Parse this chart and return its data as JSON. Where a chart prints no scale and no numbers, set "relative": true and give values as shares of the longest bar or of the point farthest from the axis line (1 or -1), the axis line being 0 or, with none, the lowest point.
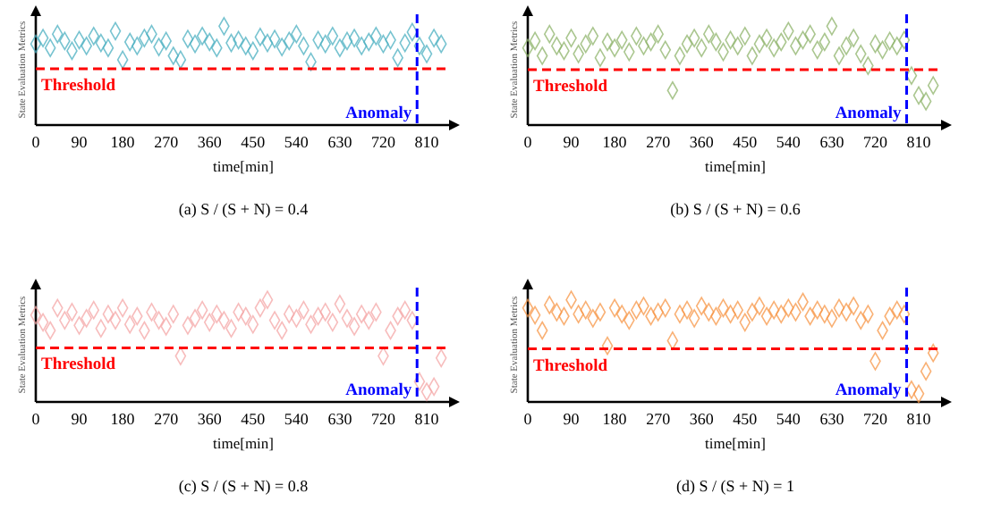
{
  "chart_data": [
    {
      "type": "scatter",
      "title": "(a) S / (S + N) = 0.4",
      "xlabel": "time[min]",
      "ylabel": "State Evaluation Metrics",
      "relative": true,
      "marker": "diamond",
      "xlim": [
        0,
        860
      ],
      "xticks": [
        0,
        90,
        180,
        270,
        360,
        450,
        540,
        630,
        720,
        810
      ],
      "x": [
        0,
        15,
        30,
        45,
        60,
        75,
        90,
        105,
        120,
        135,
        150,
        165,
        180,
        195,
        210,
        225,
        240,
        255,
        270,
        285,
        300,
        315,
        330,
        345,
        360,
        375,
        390,
        405,
        420,
        435,
        450,
        465,
        480,
        495,
        510,
        525,
        540,
        555,
        570,
        585,
        600,
        615,
        630,
        645,
        660,
        675,
        690,
        705,
        720,
        735,
        750,
        765,
        780,
        795,
        810,
        825,
        840
      ],
      "series": [
        {
          "color": "#4aafc0",
          "values": [
            0.82,
            0.88,
            0.78,
            0.92,
            0.85,
            0.75,
            0.86,
            0.8,
            0.9,
            0.83,
            0.78,
            0.95,
            0.66,
            0.84,
            0.8,
            0.88,
            0.92,
            0.79,
            0.85,
            0.7,
            0.66,
            0.87,
            0.82,
            0.9,
            0.84,
            0.78,
            1.0,
            0.83,
            0.86,
            0.8,
            0.75,
            0.89,
            0.83,
            0.87,
            0.79,
            0.85,
            0.92,
            0.8,
            0.64,
            0.86,
            0.82,
            0.9,
            0.78,
            0.85,
            0.88,
            0.8,
            0.84,
            0.9,
            0.82,
            0.86,
            0.68,
            0.83,
            0.94,
            0.8,
            0.72,
            0.88,
            0.82
          ]
        }
      ],
      "ref_lines": [
        {
          "axis": "y",
          "value": 0.57,
          "label": "Threshold",
          "color": "#ff0000",
          "line_style": "dashed"
        },
        {
          "axis": "x",
          "value": 790,
          "label": "Anomaly",
          "color": "#0000ff",
          "line_style": "dashed"
        }
      ]
    },
    {
      "type": "scatter",
      "title": "(b) S / (S + N) = 0.6",
      "xlabel": "time[min]",
      "ylabel": "State Evaluation Metrics",
      "relative": true,
      "marker": "diamond",
      "xlim": [
        0,
        860
      ],
      "xticks": [
        0,
        90,
        180,
        270,
        360,
        450,
        540,
        630,
        720,
        810
      ],
      "x": [
        0,
        15,
        30,
        45,
        60,
        75,
        90,
        105,
        120,
        135,
        150,
        165,
        180,
        195,
        210,
        225,
        240,
        255,
        270,
        285,
        300,
        315,
        330,
        345,
        360,
        375,
        390,
        405,
        420,
        435,
        450,
        465,
        480,
        495,
        510,
        525,
        540,
        555,
        570,
        585,
        600,
        615,
        630,
        645,
        660,
        675,
        690,
        705,
        720,
        735,
        750,
        765,
        780,
        795,
        810,
        825,
        840
      ],
      "series": [
        {
          "color": "#8db36a",
          "values": [
            0.78,
            0.85,
            0.7,
            0.92,
            0.8,
            0.75,
            0.88,
            0.72,
            0.82,
            0.9,
            0.68,
            0.84,
            0.78,
            0.86,
            0.74,
            0.9,
            0.8,
            0.84,
            0.92,
            0.76,
            0.35,
            0.7,
            0.82,
            0.88,
            0.78,
            0.92,
            0.84,
            0.74,
            0.86,
            0.8,
            0.9,
            0.7,
            0.82,
            0.88,
            0.78,
            0.84,
            0.95,
            0.8,
            0.86,
            0.92,
            0.76,
            0.84,
            1.0,
            0.7,
            0.8,
            0.88,
            0.72,
            0.6,
            0.82,
            0.76,
            0.85,
            0.8,
            0.86,
            0.5,
            0.3,
            0.24,
            0.4
          ]
        }
      ],
      "ref_lines": [
        {
          "axis": "y",
          "value": 0.56,
          "label": "Threshold",
          "color": "#ff0000",
          "line_style": "dashed"
        },
        {
          "axis": "x",
          "value": 785,
          "label": "Anomaly",
          "color": "#0000ff",
          "line_style": "dashed"
        }
      ]
    },
    {
      "type": "scatter",
      "title": "(c) S / (S + N) = 0.8",
      "xlabel": "time[min]",
      "ylabel": "State Evaluation Metrics",
      "relative": true,
      "marker": "diamond",
      "xlim": [
        0,
        860
      ],
      "xticks": [
        0,
        90,
        180,
        270,
        360,
        450,
        540,
        630,
        720,
        810
      ],
      "x": [
        0,
        15,
        30,
        45,
        60,
        75,
        90,
        105,
        120,
        135,
        150,
        165,
        180,
        195,
        210,
        225,
        240,
        255,
        270,
        285,
        300,
        315,
        330,
        345,
        360,
        375,
        390,
        405,
        420,
        435,
        450,
        465,
        480,
        495,
        510,
        525,
        540,
        555,
        570,
        585,
        600,
        615,
        630,
        645,
        660,
        675,
        690,
        705,
        720,
        735,
        750,
        765,
        780,
        795,
        810,
        825,
        840
      ],
      "series": [
        {
          "color": "#f4a6a6",
          "values": [
            0.85,
            0.78,
            0.7,
            0.92,
            0.8,
            0.88,
            0.75,
            0.82,
            0.9,
            0.72,
            0.86,
            0.8,
            0.92,
            0.76,
            0.84,
            0.7,
            0.88,
            0.8,
            0.74,
            0.86,
            0.45,
            0.75,
            0.82,
            0.9,
            0.78,
            0.86,
            0.8,
            0.72,
            0.88,
            0.84,
            0.76,
            0.92,
            1.0,
            0.8,
            0.7,
            0.86,
            0.82,
            0.9,
            0.76,
            0.84,
            0.88,
            0.78,
            0.96,
            0.82,
            0.74,
            0.86,
            0.8,
            0.88,
            0.45,
            0.7,
            0.84,
            0.9,
            0.8,
            0.2,
            0.1,
            0.15,
            0.43
          ]
        }
      ],
      "ref_lines": [
        {
          "axis": "y",
          "value": 0.53,
          "label": "Threshold",
          "color": "#ff0000",
          "line_style": "dashed"
        },
        {
          "axis": "x",
          "value": 790,
          "label": "Anomaly",
          "color": "#0000ff",
          "line_style": "dashed"
        }
      ]
    },
    {
      "type": "scatter",
      "title": "(d) S / (S + N) = 1",
      "xlabel": "time[min]",
      "ylabel": "State Evaluation Metrics",
      "relative": true,
      "marker": "diamond",
      "xlim": [
        0,
        860
      ],
      "xticks": [
        0,
        90,
        180,
        270,
        360,
        450,
        540,
        630,
        720,
        810
      ],
      "x": [
        0,
        15,
        30,
        45,
        60,
        75,
        90,
        105,
        120,
        135,
        150,
        165,
        180,
        195,
        210,
        225,
        240,
        255,
        270,
        285,
        300,
        315,
        330,
        345,
        360,
        375,
        390,
        405,
        420,
        435,
        450,
        465,
        480,
        495,
        510,
        525,
        540,
        555,
        570,
        585,
        600,
        615,
        630,
        645,
        660,
        675,
        690,
        705,
        720,
        735,
        750,
        765,
        780,
        795,
        810,
        825,
        840
      ],
      "series": [
        {
          "color": "#f79646",
          "values": [
            0.92,
            0.85,
            0.7,
            0.95,
            0.88,
            0.84,
            1.0,
            0.86,
            0.9,
            0.82,
            0.88,
            0.55,
            0.92,
            0.86,
            0.8,
            0.9,
            0.94,
            0.84,
            0.88,
            0.92,
            0.6,
            0.86,
            0.9,
            0.82,
            0.94,
            0.88,
            0.84,
            0.92,
            0.86,
            0.9,
            0.78,
            0.88,
            0.94,
            0.84,
            0.9,
            0.86,
            0.92,
            0.88,
            0.98,
            0.84,
            0.9,
            0.86,
            0.82,
            0.92,
            0.88,
            0.94,
            0.8,
            0.86,
            0.4,
            0.7,
            0.84,
            0.9,
            0.86,
            0.12,
            0.08,
            0.3,
            0.48
          ]
        }
      ],
      "ref_lines": [
        {
          "axis": "y",
          "value": 0.52,
          "label": "Threshold",
          "color": "#ff0000",
          "line_style": "dashed"
        },
        {
          "axis": "x",
          "value": 785,
          "label": "Anomaly",
          "color": "#0000ff",
          "line_style": "dashed"
        }
      ]
    }
  ]
}
